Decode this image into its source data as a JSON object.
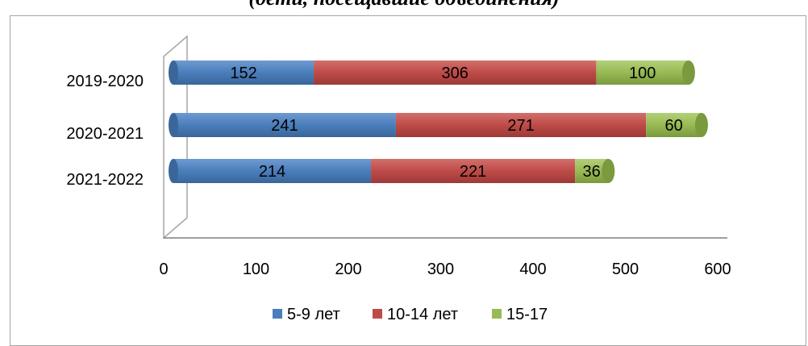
{
  "title": "(дети, посещавшие объединения)",
  "chart_data": {
    "type": "bar",
    "orientation": "horizontal",
    "stacked": true,
    "categories": [
      "2019-2020",
      "2020-2021",
      "2021-2022"
    ],
    "series": [
      {
        "name": "5-9 лет",
        "values": [
          152,
          241,
          214
        ],
        "color": "#4a7ebb"
      },
      {
        "name": "10-14 лет",
        "values": [
          306,
          271,
          221
        ],
        "color": "#be4b48"
      },
      {
        "name": "15-17",
        "values": [
          100,
          60,
          36
        ],
        "color": "#98b954"
      }
    ],
    "xlim": [
      0,
      600
    ],
    "xticks": [
      "0",
      "100",
      "200",
      "300",
      "400",
      "500",
      "600"
    ],
    "legend_position": "bottom",
    "grid": false
  }
}
